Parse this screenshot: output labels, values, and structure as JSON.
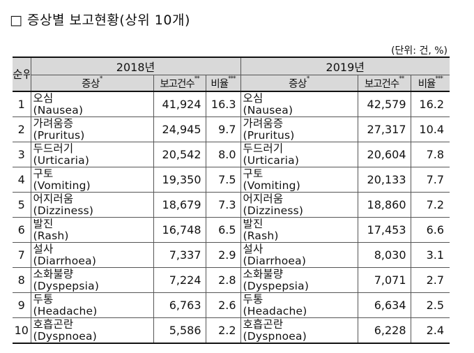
{
  "title": "□  증상별  보고현황(상위  10개)",
  "unit": "(단위:  건,  %)",
  "header": {
    "rank": "순위",
    "year_a": "2018년",
    "year_b": "2019년",
    "symptom": "증상",
    "count": "보고건수",
    "ratio": "비율",
    "star1": "*",
    "star2": "**",
    "star3": "***"
  },
  "rows": [
    {
      "rank": "1",
      "a_ko": "오심",
      "a_en": "(Nausea)",
      "a_count": "41,924",
      "a_ratio": "16.3",
      "b_ko": "오심",
      "b_en": "(Nausea)",
      "b_count": "42,579",
      "b_ratio": "16.2"
    },
    {
      "rank": "2",
      "a_ko": "가려움증",
      "a_en": "(Pruritus)",
      "a_count": "24,945",
      "a_ratio": "9.7",
      "b_ko": "가려움증",
      "b_en": "(Pruritus)",
      "b_count": "27,317",
      "b_ratio": "10.4"
    },
    {
      "rank": "3",
      "a_ko": "두드러기",
      "a_en": "(Urticaria)",
      "a_count": "20,542",
      "a_ratio": "8.0",
      "b_ko": "두드러기",
      "b_en": "(Urticaria)",
      "b_count": "20,604",
      "b_ratio": "7.8"
    },
    {
      "rank": "4",
      "a_ko": "구토",
      "a_en": "(Vomiting)",
      "a_count": "19,350",
      "a_ratio": "7.5",
      "b_ko": "구토",
      "b_en": "(Vomiting)",
      "b_count": "20,133",
      "b_ratio": "7.7"
    },
    {
      "rank": "5",
      "a_ko": "어지러움",
      "a_en": "(Dizziness)",
      "a_count": "18,679",
      "a_ratio": "7.3",
      "b_ko": "어지러움",
      "b_en": "(Dizziness)",
      "b_count": "18,860",
      "b_ratio": "7.2"
    },
    {
      "rank": "6",
      "a_ko": "발진",
      "a_en": "(Rash)",
      "a_count": "16,748",
      "a_ratio": "6.5",
      "b_ko": "발진",
      "b_en": "(Rash)",
      "b_count": "17,453",
      "b_ratio": "6.6"
    },
    {
      "rank": "7",
      "a_ko": "설사",
      "a_en": "(Diarrhoea)",
      "a_count": "7,337",
      "a_ratio": "2.9",
      "b_ko": "설사",
      "b_en": "(Diarrhoea)",
      "b_count": "8,030",
      "b_ratio": "3.1"
    },
    {
      "rank": "8",
      "a_ko": "소화불량",
      "a_en": "(Dyspepsia)",
      "a_count": "7,224",
      "a_ratio": "2.8",
      "b_ko": "소화불량",
      "b_en": "(Dyspepsia)",
      "b_count": "7,071",
      "b_ratio": "2.7"
    },
    {
      "rank": "9",
      "a_ko": "두통",
      "a_en": "(Headache)",
      "a_count": "6,763",
      "a_ratio": "2.6",
      "b_ko": "두통",
      "b_en": "(Headache)",
      "b_count": "6,634",
      "b_ratio": "2.5"
    },
    {
      "rank": "10",
      "a_ko": "호흡곤란",
      "a_en": "(Dyspnoea)",
      "a_count": "5,586",
      "a_ratio": "2.2",
      "b_ko": "호흡곤란",
      "b_en": "(Dyspnoea)",
      "b_count": "6,228",
      "b_ratio": "2.4"
    }
  ]
}
